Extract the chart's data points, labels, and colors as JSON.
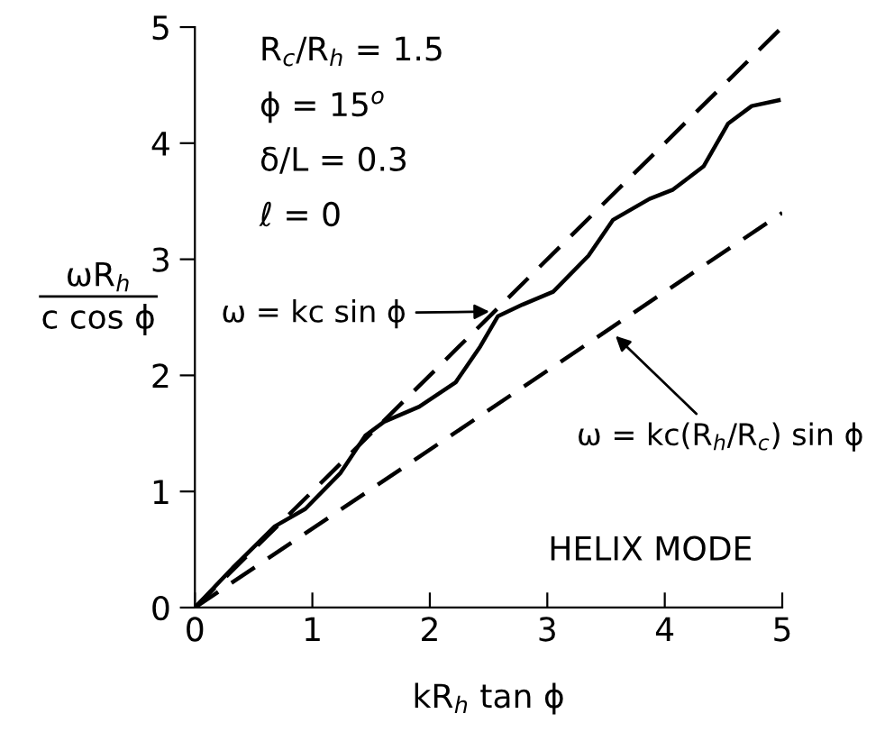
{
  "chart_data": {
    "type": "line",
    "xlabel": "kR$_{h}$ tan ϕ",
    "ylabel": "ωR$_{h}$\nc cos ϕ",
    "xlim": [
      0,
      5
    ],
    "ylim": [
      0,
      5
    ],
    "xticks": [
      0,
      1,
      2,
      3,
      4,
      5
    ],
    "yticks": [
      0,
      1,
      2,
      3,
      4,
      5
    ],
    "grid": false,
    "legend": false,
    "marker": "none",
    "series": [
      {
        "color": "#000000",
        "line_style": "solid",
        "x": [
          0,
          0.32,
          0.68,
          0.94,
          1.24,
          1.45,
          1.61,
          1.91,
          2.22,
          2.43,
          2.58,
          2.79,
          3.05,
          3.35,
          3.56,
          3.87,
          4.07,
          4.33,
          4.54,
          4.74,
          4.97
        ],
        "values": [
          0,
          0.34,
          0.7,
          0.85,
          1.16,
          1.48,
          1.6,
          1.73,
          1.94,
          2.25,
          2.51,
          2.61,
          2.72,
          3.03,
          3.34,
          3.52,
          3.6,
          3.8,
          4.17,
          4.32,
          4.37
        ]
      },
      {
        "color": "#000000",
        "line_style": "dashed",
        "x": [
          0,
          5
        ],
        "values": [
          0,
          5
        ]
      },
      {
        "color": "#000000",
        "line_style": "dashed",
        "x": [
          0,
          5
        ],
        "values": [
          0,
          3.4
        ]
      }
    ],
    "annotations": [
      "R$_{c}$/R$_{h}$ = 1.5",
      "ϕ = 15$^{o}$",
      "δ/L = 0.3",
      "ℓ = 0",
      {
        "text": "ω = kc sin ϕ",
        "x": 2.55,
        "y": 2.55
      },
      {
        "text": "ω = kc(R$_{h}$/R$_{c}$) sin ϕ",
        "x": 3.55,
        "y": 2.37
      },
      "HELIX MODE"
    ]
  }
}
